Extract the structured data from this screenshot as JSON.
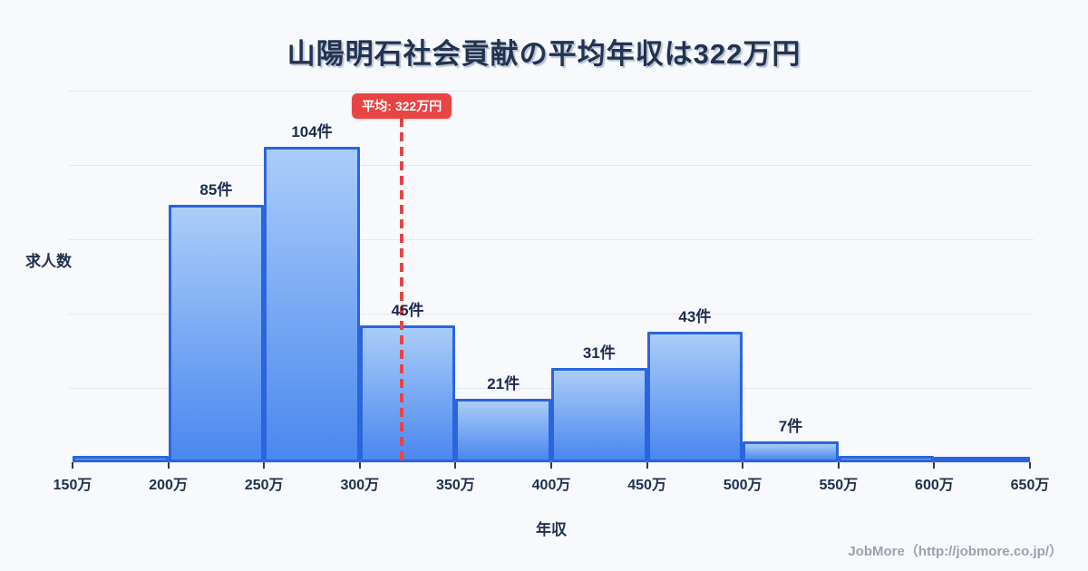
{
  "title": "山陽明石社会貢献の平均年収は322万円",
  "y_axis_label": "求人数",
  "x_axis_label": "年収",
  "footer": "JobMore（http://jobmore.co.jp/）",
  "average_badge": "平均: 322万円",
  "colors": {
    "background": "#f7f9fc",
    "title_text": "#22324f",
    "grid_line": "#e4e8f1",
    "bar_fill_top": "#aacdf8",
    "bar_fill_bottom": "#4a87f0",
    "bar_border": "#2a65dd",
    "average_red": "#e84444",
    "footer_text": "#9ba1ab"
  },
  "chart_data": {
    "type": "bar",
    "subtype": "histogram",
    "title": "山陽明石社会貢献の平均年収は322万円",
    "xlabel": "年収",
    "ylabel": "求人数",
    "x_tick_labels": [
      "150万",
      "200万",
      "250万",
      "300万",
      "350万",
      "400万",
      "450万",
      "500万",
      "550万",
      "600万",
      "650万"
    ],
    "bin_edges_man_yen": [
      150,
      200,
      250,
      300,
      350,
      400,
      450,
      500,
      550,
      600,
      650
    ],
    "values": [
      2,
      85,
      104,
      45,
      21,
      31,
      43,
      7,
      2,
      1
    ],
    "bar_labels": [
      "",
      "85件",
      "104件",
      "45件",
      "21件",
      "31件",
      "43件",
      "7件",
      "",
      ""
    ],
    "average_man_yen": 322,
    "average_label": "平均: 322万円",
    "x_range_man_yen": [
      150,
      650
    ],
    "y_max": 122.5,
    "grid": "horizontal",
    "grid_rows": 5,
    "legend": "none"
  }
}
